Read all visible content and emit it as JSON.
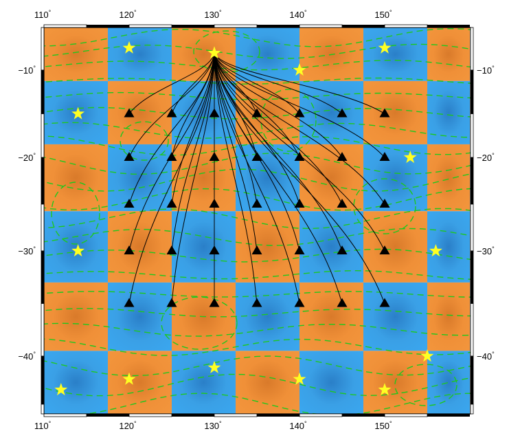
{
  "map": {
    "lon_range": [
      110,
      160
    ],
    "lat_range": [
      -46,
      -5
    ],
    "lon_tick_labels": [
      "110",
      "120",
      "130",
      "140",
      "150"
    ],
    "lat_tick_labels": [
      "-10",
      "-20",
      "-30",
      "-40"
    ],
    "degree_symbol": "°",
    "colors": {
      "checker_blue": "#3aa0e6",
      "checker_orange": "#f09038",
      "contour": "#1ec81e",
      "ray": "#000000",
      "station": "#000000",
      "event": "#ffff22"
    },
    "checker_cells_lon": [
      110,
      117.5,
      125,
      132.5,
      140,
      147.5,
      155,
      160
    ],
    "checker_cells_lat": [
      -5,
      -11.25,
      -18.5,
      -25.75,
      -33,
      -39.5,
      -46
    ],
    "source": {
      "lon": 130,
      "lat": -8
    },
    "stations": [
      {
        "lon": 120,
        "lat": -15
      },
      {
        "lon": 125,
        "lat": -15
      },
      {
        "lon": 130,
        "lat": -15
      },
      {
        "lon": 135,
        "lat": -15
      },
      {
        "lon": 140,
        "lat": -15
      },
      {
        "lon": 145,
        "lat": -15
      },
      {
        "lon": 150,
        "lat": -15
      },
      {
        "lon": 120,
        "lat": -20
      },
      {
        "lon": 125,
        "lat": -20
      },
      {
        "lon": 130,
        "lat": -20
      },
      {
        "lon": 135,
        "lat": -20
      },
      {
        "lon": 140,
        "lat": -20
      },
      {
        "lon": 145,
        "lat": -20
      },
      {
        "lon": 150,
        "lat": -20
      },
      {
        "lon": 120,
        "lat": -25
      },
      {
        "lon": 125,
        "lat": -25
      },
      {
        "lon": 130,
        "lat": -25
      },
      {
        "lon": 135,
        "lat": -25
      },
      {
        "lon": 140,
        "lat": -25
      },
      {
        "lon": 145,
        "lat": -25
      },
      {
        "lon": 150,
        "lat": -25
      },
      {
        "lon": 120,
        "lat": -30
      },
      {
        "lon": 125,
        "lat": -30
      },
      {
        "lon": 130,
        "lat": -30
      },
      {
        "lon": 135,
        "lat": -30
      },
      {
        "lon": 140,
        "lat": -30
      },
      {
        "lon": 145,
        "lat": -30
      },
      {
        "lon": 150,
        "lat": -30
      },
      {
        "lon": 120,
        "lat": -35
      },
      {
        "lon": 125,
        "lat": -35
      },
      {
        "lon": 130,
        "lat": -35
      },
      {
        "lon": 135,
        "lat": -35
      },
      {
        "lon": 140,
        "lat": -35
      },
      {
        "lon": 145,
        "lat": -35
      },
      {
        "lon": 150,
        "lat": -35
      }
    ],
    "events": [
      {
        "lon": 120,
        "lat": -7.4
      },
      {
        "lon": 130,
        "lat": -8
      },
      {
        "lon": 140,
        "lat": -10
      },
      {
        "lon": 150,
        "lat": -7.4
      },
      {
        "lon": 114,
        "lat": -15
      },
      {
        "lon": 153,
        "lat": -20
      },
      {
        "lon": 114,
        "lat": -30
      },
      {
        "lon": 156,
        "lat": -30
      },
      {
        "lon": 155,
        "lat": -40
      },
      {
        "lon": 130,
        "lat": -41.2
      },
      {
        "lon": 112,
        "lat": -43.5
      },
      {
        "lon": 120,
        "lat": -42.4
      },
      {
        "lon": 140,
        "lat": -42.4
      },
      {
        "lon": 150,
        "lat": -43.5
      }
    ]
  }
}
